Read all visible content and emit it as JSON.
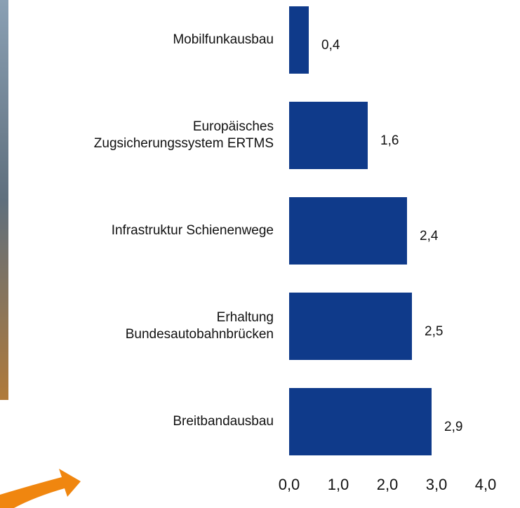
{
  "chart_data": {
    "type": "bar",
    "orientation": "horizontal",
    "categories": [
      "Mobilfunkausbau",
      "Europäisches\nZugsicherungssystem ERTMS",
      "Infrastruktur Schienenwege",
      "Erhaltung\nBundesautobahnbrücken",
      "Breitbandausbau"
    ],
    "values": [
      0.4,
      1.6,
      2.4,
      2.5,
      2.9
    ],
    "value_labels": [
      "0,4",
      "1,6",
      "2,4",
      "2,5",
      "2,9"
    ],
    "color": "#0f3a8a",
    "xlim": [
      0,
      4
    ],
    "xticks": [
      {
        "value": 0,
        "label": "0,0"
      },
      {
        "value": 1,
        "label": "1,0"
      },
      {
        "value": 2,
        "label": "2,0"
      },
      {
        "value": 3,
        "label": "3,0"
      },
      {
        "value": 4,
        "label": "4,0"
      }
    ]
  }
}
